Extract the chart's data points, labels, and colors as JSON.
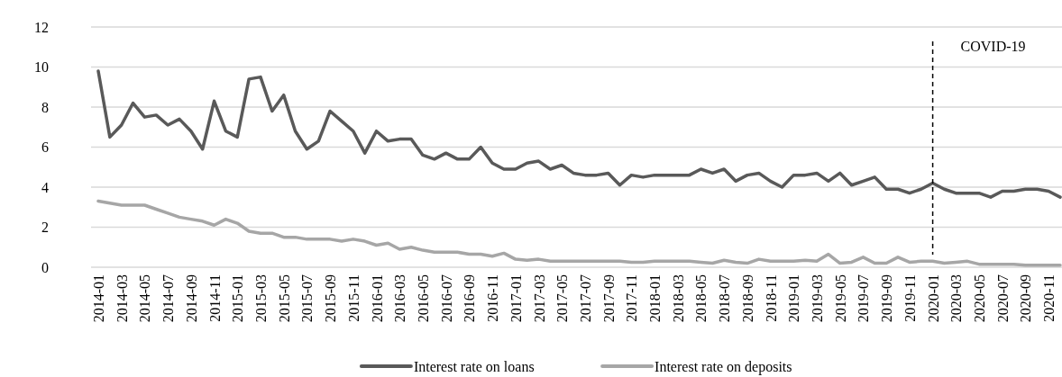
{
  "chart_data": {
    "type": "line",
    "categories": [
      "2014-01",
      null,
      "2014-03",
      null,
      "2014-05",
      null,
      "2014-07",
      null,
      "2014-09",
      null,
      "2014-11",
      null,
      "2015-01",
      null,
      "2015-03",
      null,
      "2015-05",
      null,
      "2015-07",
      null,
      "2015-09",
      null,
      "2015-11",
      null,
      "2016-01",
      null,
      "2016-03",
      null,
      "2016-05",
      null,
      "2016-07",
      null,
      "2016-09",
      null,
      "2016-11",
      null,
      "2017-01",
      null,
      "2017-03",
      null,
      "2017-05",
      null,
      "2017-07",
      null,
      "2017-09",
      null,
      "2017-11",
      null,
      "2018-01",
      null,
      "2018-03",
      null,
      "2018-05",
      null,
      "2018-07",
      null,
      "2018-09",
      null,
      "2018-11",
      null,
      "2019-01",
      null,
      "2019-03",
      null,
      "2019-05",
      null,
      "2019-07",
      null,
      "2019-09",
      null,
      "2019-11",
      null,
      "2020-01",
      null,
      "2020-03",
      null,
      "2020-05",
      null,
      "2020-07",
      null,
      "2020-09",
      null,
      "2020-11",
      null
    ],
    "series": [
      {
        "name": "Interest rate on loans",
        "color": "#595959",
        "values": [
          9.8,
          6.5,
          7.1,
          8.2,
          7.5,
          7.6,
          7.1,
          7.4,
          6.8,
          5.9,
          8.3,
          6.8,
          6.5,
          9.4,
          9.5,
          7.8,
          8.6,
          6.8,
          5.9,
          6.3,
          7.8,
          7.3,
          6.8,
          5.7,
          6.8,
          6.3,
          6.4,
          6.4,
          5.6,
          5.4,
          5.7,
          5.4,
          5.4,
          6.0,
          5.2,
          4.9,
          4.9,
          5.2,
          5.3,
          4.9,
          5.1,
          4.7,
          4.6,
          4.6,
          4.7,
          4.1,
          4.6,
          4.5,
          4.6,
          4.6,
          4.6,
          4.6,
          4.9,
          4.7,
          4.9,
          4.3,
          4.6,
          4.7,
          4.3,
          4.0,
          4.6,
          4.6,
          4.7,
          4.3,
          4.7,
          4.1,
          4.3,
          4.5,
          3.9,
          3.9,
          3.7,
          3.9,
          4.2,
          3.9,
          3.7,
          3.7,
          3.7,
          3.5,
          3.8,
          3.8,
          3.9,
          3.9,
          3.8,
          3.5
        ]
      },
      {
        "name": "Interest rate on deposits",
        "color": "#a6a6a6",
        "values": [
          3.3,
          3.2,
          3.1,
          3.1,
          3.1,
          2.9,
          2.7,
          2.5,
          2.4,
          2.3,
          2.1,
          2.4,
          2.2,
          1.8,
          1.7,
          1.7,
          1.5,
          1.5,
          1.4,
          1.4,
          1.4,
          1.3,
          1.4,
          1.3,
          1.1,
          1.2,
          0.9,
          1.0,
          0.85,
          0.75,
          0.75,
          0.75,
          0.65,
          0.65,
          0.55,
          0.7,
          0.4,
          0.35,
          0.4,
          0.3,
          0.3,
          0.3,
          0.3,
          0.3,
          0.3,
          0.3,
          0.25,
          0.25,
          0.3,
          0.3,
          0.3,
          0.3,
          0.25,
          0.2,
          0.35,
          0.25,
          0.2,
          0.4,
          0.3,
          0.3,
          0.3,
          0.35,
          0.3,
          0.65,
          0.2,
          0.25,
          0.5,
          0.2,
          0.2,
          0.5,
          0.25,
          0.3,
          0.3,
          0.2,
          0.25,
          0.3,
          0.15,
          0.15,
          0.15,
          0.15,
          0.1,
          0.1,
          0.1,
          0.1
        ]
      }
    ],
    "ylim": [
      0,
      12
    ],
    "yticks": [
      0,
      2,
      4,
      6,
      8,
      10,
      12
    ],
    "grid": "y",
    "legend": "bottom",
    "line_style": "solid",
    "ref_lines": [
      {
        "axis": "x",
        "value": "2020-01",
        "label": "COVID-19",
        "color": "#000000",
        "line_style": "dashed"
      }
    ]
  }
}
